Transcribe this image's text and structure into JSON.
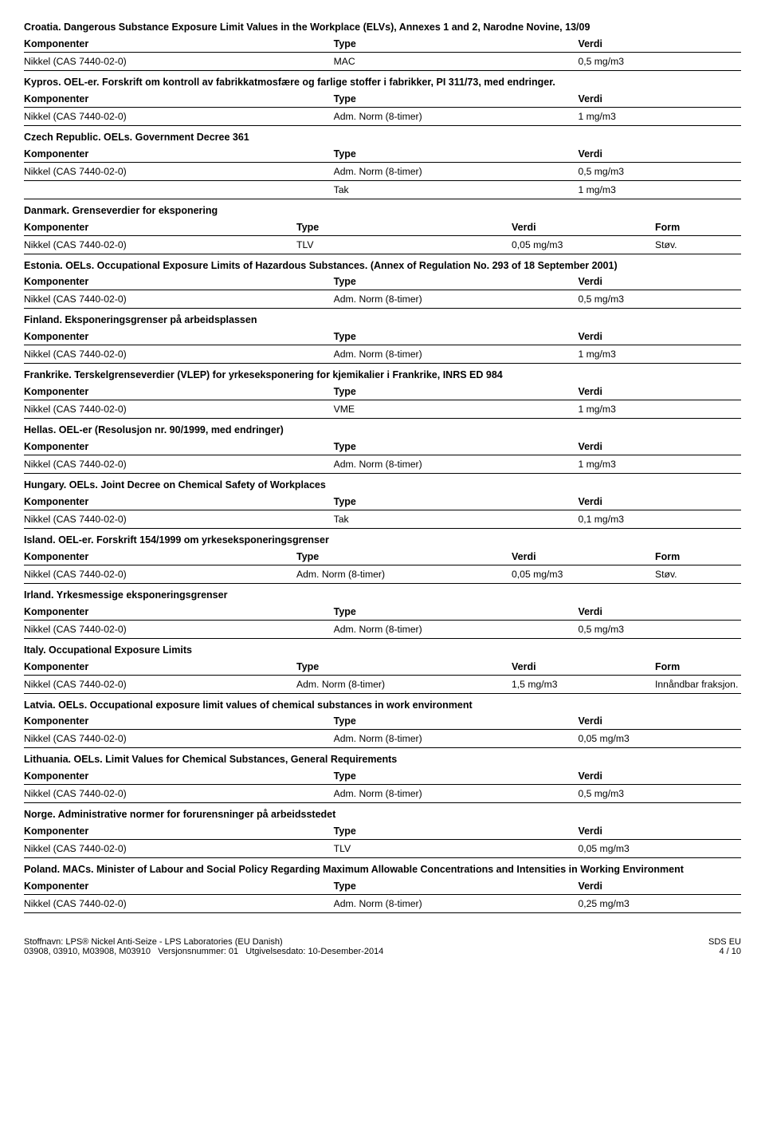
{
  "headers": {
    "comp": "Komponenter",
    "type": "Type",
    "verdi": "Verdi",
    "form": "Form"
  },
  "substance": "Nikkel (CAS 7440-02-0)",
  "sections": [
    {
      "title": "Croatia. Dangerous Substance Exposure Limit Values in the Workplace (ELVs), Annexes 1 and 2, Narodne Novine, 13/09",
      "rows": [
        {
          "type": "MAC",
          "verdi": "0,5 mg/m3"
        }
      ],
      "form": false
    },
    {
      "title": "Kypros. OEL-er. Forskrift om kontroll av fabrikkatmosfære og farlige stoffer i fabrikker, PI 311/73, med endringer.",
      "rows": [
        {
          "type": "Adm. Norm (8-timer)",
          "verdi": "1 mg/m3"
        }
      ],
      "form": false
    },
    {
      "title": "Czech Republic. OELs. Government Decree 361",
      "rows": [
        {
          "type": "Adm. Norm (8-timer)",
          "verdi": "0,5 mg/m3"
        },
        {
          "type": "Tak",
          "verdi": "1 mg/m3",
          "noSubstance": true
        }
      ],
      "form": false
    },
    {
      "title": "Danmark. Grenseverdier for eksponering",
      "rows": [
        {
          "type": "TLV",
          "verdi": "0,05 mg/m3",
          "form": "Støv."
        }
      ],
      "form": true
    },
    {
      "title": "Estonia. OELs. Occupational Exposure Limits of Hazardous Substances. (Annex of Regulation No. 293 of 18 September 2001)",
      "rows": [
        {
          "type": "Adm. Norm (8-timer)",
          "verdi": "0,5 mg/m3"
        }
      ],
      "form": false
    },
    {
      "title": "Finland. Eksponeringsgrenser på arbeidsplassen",
      "rows": [
        {
          "type": "Adm. Norm (8-timer)",
          "verdi": "1 mg/m3"
        }
      ],
      "form": false
    },
    {
      "title": "Frankrike. Terskelgrenseverdier (VLEP) for yrkeseksponering for kjemikalier i Frankrike, INRS ED 984",
      "rows": [
        {
          "type": "VME",
          "verdi": "1 mg/m3"
        }
      ],
      "form": false
    },
    {
      "title": "Hellas. OEL-er (Resolusjon nr. 90/1999, med endringer)",
      "rows": [
        {
          "type": "Adm. Norm (8-timer)",
          "verdi": "1 mg/m3"
        }
      ],
      "form": false
    },
    {
      "title": "Hungary. OELs. Joint Decree on Chemical Safety of Workplaces",
      "rows": [
        {
          "type": "Tak",
          "verdi": "0,1 mg/m3"
        }
      ],
      "form": false
    },
    {
      "title": "Island. OEL-er. Forskrift 154/1999 om yrkeseksponeringsgrenser",
      "rows": [
        {
          "type": "Adm. Norm (8-timer)",
          "verdi": "0,05 mg/m3",
          "form": "Støv."
        }
      ],
      "form": true
    },
    {
      "title": "Irland. Yrkesmessige eksponeringsgrenser",
      "rows": [
        {
          "type": "Adm. Norm (8-timer)",
          "verdi": "0,5 mg/m3"
        }
      ],
      "form": false
    },
    {
      "title": "Italy. Occupational Exposure Limits",
      "rows": [
        {
          "type": "Adm. Norm (8-timer)",
          "verdi": "1,5 mg/m3",
          "form": "Innåndbar fraksjon."
        }
      ],
      "form": true
    },
    {
      "title": "Latvia. OELs. Occupational exposure limit values of chemical substances in work environment",
      "rows": [
        {
          "type": "Adm. Norm (8-timer)",
          "verdi": "0,05 mg/m3"
        }
      ],
      "form": false
    },
    {
      "title": "Lithuania. OELs.  Limit Values for Chemical Substances, General Requirements",
      "rows": [
        {
          "type": "Adm. Norm (8-timer)",
          "verdi": "0,5 mg/m3"
        }
      ],
      "form": false
    },
    {
      "title": "Norge. Administrative normer for forurensninger på arbeidsstedet",
      "rows": [
        {
          "type": "TLV",
          "verdi": "0,05 mg/m3"
        }
      ],
      "form": false
    },
    {
      "title": "Poland. MACs. Minister of Labour and Social Policy Regarding Maximum Allowable Concentrations and Intensities in Working Environment",
      "rows": [
        {
          "type": "Adm. Norm (8-timer)",
          "verdi": "0,25 mg/m3"
        }
      ],
      "form": false
    }
  ],
  "footer": {
    "line1": "Stoffnavn: LPS® Nickel Anti-Seize - LPS Laboratories (EU Danish)",
    "line2_left": "03908, 03910, M03908, M03910",
    "line2_mid": "Versjonsnummer: 01",
    "line2_right": "Utgivelsesdato: 10-Desember-2014",
    "right_t": "SDS EU",
    "right_b": "4 / 10"
  }
}
